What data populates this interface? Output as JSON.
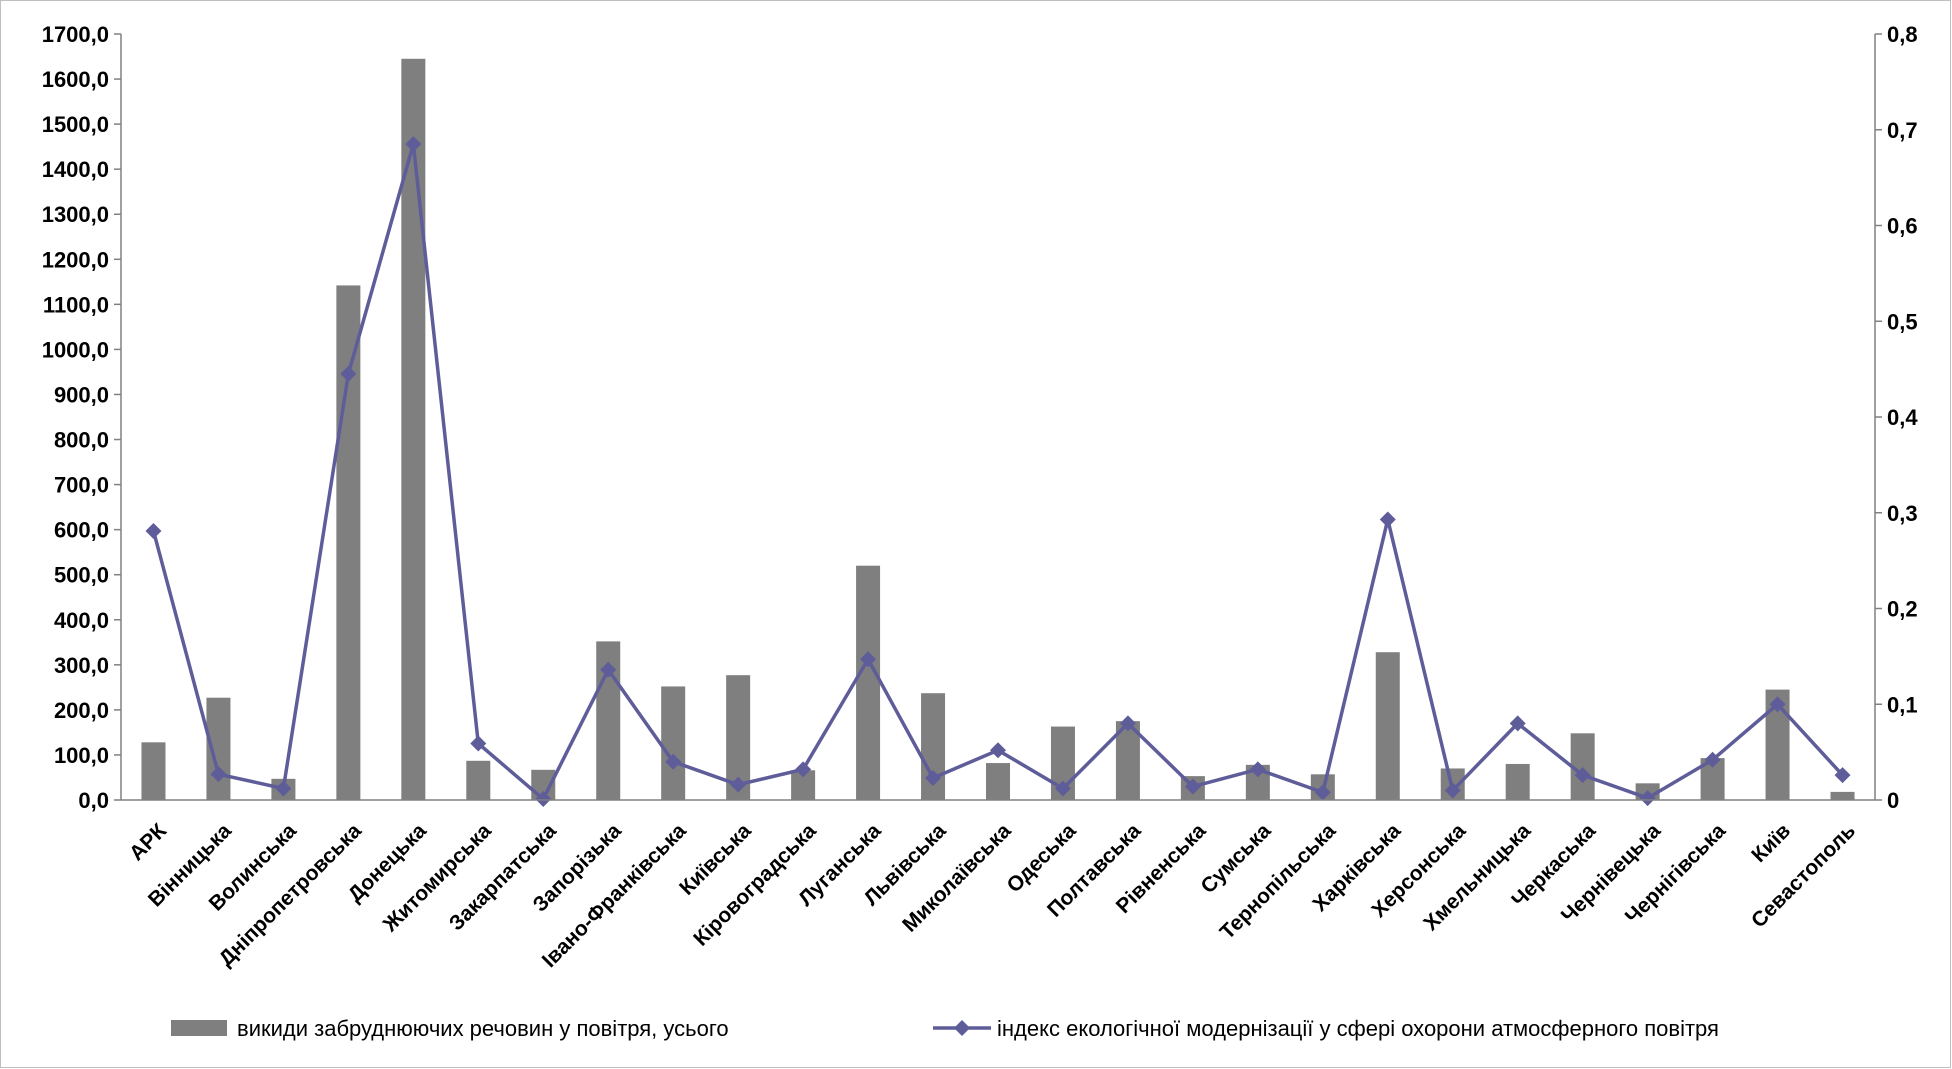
{
  "chart_data": {
    "type": "bar+line",
    "categories": [
      "АРК",
      "Вінницька",
      "Волинська",
      "Дніпропетровська",
      "Донецька",
      "Житомирська",
      "Закарпатська",
      "Запорізька",
      "Івано-Франківська",
      "Київська",
      "Кіровоградська",
      "Луганська",
      "Львівська",
      "Миколаївська",
      "Одеська",
      "Полтавська",
      "Рівненська",
      "Сумська",
      "Тернопільська",
      "Харківська",
      "Херсонська",
      "Хмельницька",
      "Черкаська",
      "Чернівецька",
      "Чернігівська",
      "Київ",
      "Севастополь"
    ],
    "series": [
      {
        "name": "викиди забруднюючих речовин у повітря, усього",
        "type": "bar",
        "axis": "left",
        "color": "#7f7f7f",
        "values": [
          128,
          227,
          47,
          1142,
          1645,
          87,
          67,
          352,
          252,
          277,
          66,
          520,
          237,
          82,
          163,
          175,
          53,
          78,
          57,
          328,
          70,
          80,
          148,
          37,
          93,
          245,
          18
        ]
      },
      {
        "name": "індекс екологічної модернізації у сфері охорони атмосферного повітря",
        "type": "line",
        "axis": "right",
        "color": "#5e5d99",
        "marker": "diamond",
        "values": [
          0.281,
          0.027,
          0.012,
          0.445,
          0.685,
          0.059,
          0.001,
          0.136,
          0.04,
          0.016,
          0.032,
          0.147,
          0.023,
          0.052,
          0.012,
          0.08,
          0.014,
          0.032,
          0.008,
          0.293,
          0.01,
          0.08,
          0.026,
          0.002,
          0.042,
          0.1,
          0.026
        ]
      }
    ],
    "y_left": {
      "lim": [
        0,
        1700
      ],
      "ticks": [
        "0,0",
        "100,0",
        "200,0",
        "300,0",
        "400,0",
        "500,0",
        "600,0",
        "700,0",
        "800,0",
        "900,0",
        "1000,0",
        "1100,0",
        "1200,0",
        "1300,0",
        "1400,0",
        "1500,0",
        "1600,0",
        "1700,0"
      ]
    },
    "y_right": {
      "lim": [
        0,
        0.8
      ],
      "ticks": [
        "0",
        "0,1",
        "0,2",
        "0,3",
        "0,4",
        "0,5",
        "0,6",
        "0,7",
        "0,8"
      ]
    },
    "grid": false,
    "legend": "bottom"
  }
}
